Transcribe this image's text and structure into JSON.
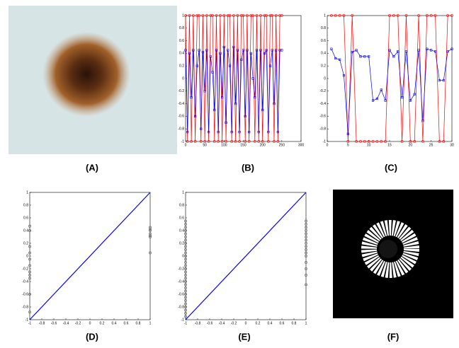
{
  "panel_labels": [
    "(A)",
    "(B)",
    "(C)",
    "(D)",
    "(E)",
    "(F)"
  ],
  "chart_data": [
    {
      "type": "line",
      "x": [
        0,
        5,
        10,
        15,
        20,
        25,
        30,
        35,
        40,
        45,
        50,
        55,
        60,
        65,
        70,
        75,
        80,
        85,
        90,
        95,
        100,
        105,
        110,
        115,
        120,
        125,
        130,
        135,
        140,
        145,
        150,
        155,
        160,
        165,
        170,
        175,
        180,
        185,
        190,
        195,
        200,
        205,
        210,
        215,
        220,
        225,
        230,
        235,
        240,
        245,
        250
      ],
      "xlim": [
        0,
        300
      ],
      "xticks": [
        0,
        50,
        100,
        150,
        200,
        250,
        300
      ],
      "ylim": [
        -1,
        1
      ],
      "yticks": [
        -1,
        -0.8,
        -0.6,
        -0.4,
        -0.2,
        0,
        0.2,
        0.4,
        0.6,
        0.8,
        1
      ],
      "series": [
        {
          "color": "#ff0000",
          "marker": "circle",
          "values": [
            1,
            -1,
            1,
            -1,
            1,
            -1,
            1,
            1,
            -1,
            1,
            -1,
            1,
            -1,
            1,
            1,
            -1,
            1,
            -1,
            1,
            -1,
            1,
            -1,
            1,
            1,
            -1,
            1,
            -1,
            1,
            -1,
            1,
            1,
            -1,
            1,
            -1,
            1,
            1,
            -1,
            1,
            -1,
            1,
            -1,
            1,
            1,
            -1,
            1,
            1,
            -1,
            1,
            -1,
            1,
            1
          ]
        },
        {
          "color": "#0000ff",
          "marker": "square",
          "values": [
            0.45,
            -0.85,
            0.4,
            -0.3,
            0.45,
            -0.6,
            0.2,
            0.45,
            -0.8,
            0.42,
            -0.2,
            0.45,
            -0.85,
            0.35,
            0.1,
            -0.5,
            0.45,
            -0.85,
            0.4,
            -0.3,
            0.5,
            -0.7,
            0.45,
            0.2,
            -0.85,
            0.5,
            -0.4,
            0.45,
            -0.85,
            0.3,
            0.45,
            -0.6,
            0.45,
            -0.85,
            0.4,
            0.0,
            -0.3,
            0.45,
            -0.85,
            0.45,
            -0.5,
            0.4,
            0.45,
            -0.85,
            0.2,
            0.45,
            -0.4,
            0.45,
            -0.85,
            0.45,
            0.45
          ]
        }
      ]
    },
    {
      "type": "line",
      "x": [
        1,
        2,
        3,
        4,
        5,
        6,
        7,
        8,
        9,
        10,
        11,
        12,
        13,
        14,
        15,
        16,
        17,
        18,
        19,
        20,
        21,
        22,
        23,
        24,
        25,
        26,
        27,
        28,
        29,
        30
      ],
      "xlim": [
        0,
        30
      ],
      "xticks": [
        0,
        5,
        10,
        15,
        20,
        25,
        30
      ],
      "ylim": [
        -1,
        1
      ],
      "yticks": [
        -1,
        -0.8,
        -0.6,
        -0.4,
        -0.2,
        0,
        0.2,
        0.4,
        0.6,
        0.8,
        1
      ],
      "series": [
        {
          "color": "#ff0000",
          "marker": "circle",
          "values": [
            1,
            1,
            1,
            1,
            -1,
            1,
            -1,
            -1,
            -1,
            -1,
            -1,
            -1,
            -1,
            -1,
            1,
            1,
            1,
            -1,
            1,
            -1,
            -1,
            1,
            -1,
            1,
            1,
            1,
            -1,
            -1,
            1,
            1
          ]
        },
        {
          "color": "#0000ff",
          "marker": "square",
          "values": [
            0.47,
            0.32,
            0.3,
            0.05,
            -0.88,
            0.42,
            0.45,
            0.35,
            0.35,
            0.35,
            -0.35,
            -0.32,
            -0.18,
            -0.35,
            0.45,
            0.35,
            0.43,
            -0.3,
            0.43,
            -0.35,
            -0.25,
            0.45,
            -0.67,
            0.47,
            0.45,
            0.43,
            -0.03,
            -0.03,
            0.43,
            0.47
          ]
        }
      ]
    },
    {
      "type": "scatter",
      "xlim": [
        -1,
        1
      ],
      "xticks": [
        -1,
        -0.8,
        -0.6,
        -0.4,
        -0.2,
        0,
        0.2,
        0.4,
        0.6,
        0.8,
        1
      ],
      "ylim": [
        -1,
        1
      ],
      "yticks": [
        -1,
        -0.8,
        -0.6,
        -0.4,
        -0.2,
        0,
        0.2,
        0.4,
        0.6,
        0.8,
        1
      ],
      "reference_line": {
        "color": "#0000ff",
        "x": [
          -1,
          1
        ],
        "y": [
          -1,
          1
        ]
      },
      "series": [
        {
          "color": "#555555",
          "x": [
            -1,
            -1,
            -1,
            -1,
            -1,
            -1,
            -1,
            -1,
            -1,
            -1,
            -1
          ],
          "values": [
            0.47,
            0.4,
            0.15,
            0.05,
            -0.05,
            -0.15,
            -0.25,
            -0.3,
            -0.35,
            -0.6,
            -0.88
          ]
        },
        {
          "color": "#555555",
          "x": [
            1,
            1,
            1,
            1,
            1,
            1,
            1
          ],
          "values": [
            0.45,
            0.42,
            0.4,
            0.35,
            0.32,
            0.3,
            0.05
          ]
        }
      ]
    },
    {
      "type": "scatter",
      "xlim": [
        -1,
        1
      ],
      "xticks": [
        -1,
        -0.8,
        -0.6,
        -0.4,
        -0.2,
        0,
        0.2,
        0.4,
        0.6,
        0.8,
        1
      ],
      "ylim": [
        -1,
        1
      ],
      "yticks": [
        -1,
        -0.8,
        -0.6,
        -0.4,
        -0.2,
        0,
        0.2,
        0.4,
        0.6,
        0.8,
        1
      ],
      "reference_line": {
        "color": "#0000ff",
        "x": [
          -1,
          1
        ],
        "y": [
          -1,
          1
        ]
      },
      "series": [
        {
          "color": "#555555",
          "x": [
            -1,
            -1,
            -1,
            -1,
            -1,
            -1,
            -1,
            -1,
            -1,
            -1,
            -1,
            -1,
            -1,
            -1,
            -1,
            -1,
            -1,
            -1,
            -1,
            -1,
            -1,
            -1,
            -1,
            -1,
            -1,
            -1,
            -1,
            -1,
            -1,
            -1,
            -1
          ],
          "values": [
            0.55,
            0.5,
            0.45,
            0.4,
            0.35,
            0.3,
            0.25,
            0.2,
            0.15,
            0.1,
            0.05,
            0,
            -0.05,
            -0.1,
            -0.15,
            -0.2,
            -0.25,
            -0.3,
            -0.35,
            -0.4,
            -0.45,
            -0.5,
            -0.55,
            -0.6,
            -0.65,
            -0.7,
            -0.75,
            -0.8,
            -0.85,
            -0.9,
            -0.95
          ]
        },
        {
          "color": "#555555",
          "x": [
            1,
            1,
            1,
            1,
            1,
            1,
            1,
            1,
            1,
            1,
            1,
            1,
            1,
            1,
            1,
            1
          ],
          "values": [
            0.55,
            0.5,
            0.45,
            0.4,
            0.35,
            0.3,
            0.25,
            0.2,
            0.15,
            0.1,
            0.05,
            0,
            -0.1,
            -0.2,
            -0.3,
            -0.45
          ]
        }
      ]
    }
  ]
}
